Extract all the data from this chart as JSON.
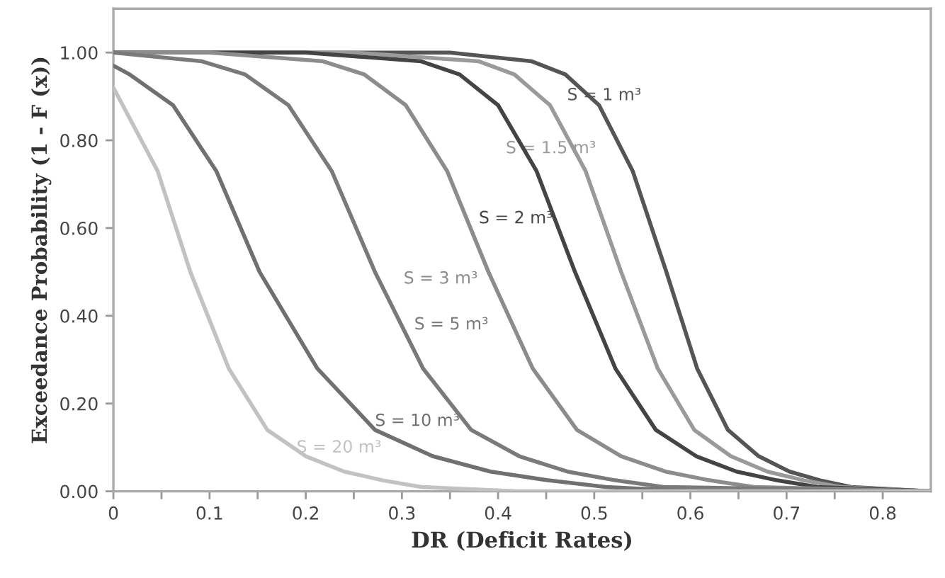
{
  "chart_data": {
    "type": "line",
    "xlabel": "DR (Deficit Rates)",
    "ylabel": "Exceedance Probability (1 - F (x))",
    "xlim": [
      0,
      0.85
    ],
    "ylim": [
      0,
      1.1
    ],
    "xticks": [
      0,
      {
        "value": 0.05,
        "label": null
      },
      0.1,
      {
        "value": 0.15,
        "label": null
      },
      0.2,
      {
        "value": 0.25,
        "label": null
      },
      0.3,
      {
        "value": 0.35,
        "label": null
      },
      0.4,
      {
        "value": 0.45,
        "label": null
      },
      0.5,
      {
        "value": 0.55,
        "label": null
      },
      0.6,
      {
        "value": 0.65,
        "label": null
      },
      0.7,
      {
        "value": 0.75,
        "label": null
      },
      0.8
    ],
    "yticks": [
      {
        "value": 0,
        "label": "0.00"
      },
      {
        "value": 0.2,
        "label": "0.20"
      },
      {
        "value": 0.4,
        "label": "0.40"
      },
      {
        "value": 0.6,
        "label": "0.60"
      },
      {
        "value": 0.8,
        "label": "0.80"
      },
      {
        "value": 1.0,
        "label": "1.00"
      }
    ],
    "grid": false,
    "legend": false,
    "marker": "none",
    "line_style": "solid",
    "series": [
      {
        "name": "S = 1 m³",
        "color": "#555555",
        "x": [
          0,
          0.35,
          0.435,
          0.47,
          0.505,
          0.54,
          0.575,
          0.607,
          0.639,
          0.671,
          0.703,
          0.735,
          0.767,
          0.85
        ],
        "values": [
          1.0,
          1.0,
          0.98,
          0.95,
          0.88,
          0.73,
          0.5,
          0.28,
          0.14,
          0.08,
          0.045,
          0.025,
          0.01,
          0.0
        ]
      },
      {
        "name": "S = 1.5 m³",
        "color": "#9a9a9a",
        "x": [
          0,
          0.25,
          0.38,
          0.417,
          0.454,
          0.491,
          0.528,
          0.566,
          0.604,
          0.642,
          0.68,
          0.718,
          0.756,
          0.85
        ],
        "values": [
          1.0,
          1.0,
          0.98,
          0.95,
          0.88,
          0.73,
          0.5,
          0.28,
          0.14,
          0.08,
          0.045,
          0.025,
          0.01,
          0.0
        ]
      },
      {
        "name": "S = 2 m³",
        "color": "#444444",
        "x": [
          0,
          0.2,
          0.32,
          0.36,
          0.4,
          0.44,
          0.48,
          0.522,
          0.564,
          0.606,
          0.648,
          0.69,
          0.732,
          0.85
        ],
        "values": [
          1.0,
          1.0,
          0.98,
          0.95,
          0.88,
          0.73,
          0.5,
          0.28,
          0.14,
          0.08,
          0.045,
          0.025,
          0.01,
          0.0
        ]
      },
      {
        "name": "S = 3 m³",
        "color": "#8c8c8c",
        "x": [
          0,
          0.1,
          0.218,
          0.261,
          0.304,
          0.347,
          0.39,
          0.436,
          0.482,
          0.528,
          0.574,
          0.62,
          0.666,
          0.85
        ],
        "values": [
          1.0,
          1.0,
          0.98,
          0.95,
          0.88,
          0.73,
          0.5,
          0.28,
          0.14,
          0.08,
          0.045,
          0.025,
          0.01,
          0.0
        ]
      },
      {
        "name": "S = 5 m³",
        "color": "#7a7a7a",
        "x": [
          0,
          0.092,
          0.137,
          0.182,
          0.227,
          0.272,
          0.322,
          0.372,
          0.422,
          0.472,
          0.522,
          0.572,
          0.85
        ],
        "values": [
          1.0,
          0.98,
          0.95,
          0.88,
          0.73,
          0.5,
          0.28,
          0.14,
          0.08,
          0.045,
          0.025,
          0.01,
          0.0
        ]
      },
      {
        "name": "S = 10 m³",
        "color": "#707070",
        "x": [
          0,
          0.017,
          0.062,
          0.107,
          0.152,
          0.212,
          0.272,
          0.332,
          0.392,
          0.452,
          0.512,
          0.6,
          0.85
        ],
        "values": [
          0.97,
          0.95,
          0.88,
          0.73,
          0.5,
          0.28,
          0.14,
          0.08,
          0.045,
          0.025,
          0.01,
          0.0,
          0.0
        ]
      },
      {
        "name": "S = 20 m³",
        "color": "#c2c2c2",
        "x": [
          0,
          0.046,
          0.08,
          0.12,
          0.16,
          0.2,
          0.24,
          0.28,
          0.32,
          0.42,
          0.85
        ],
        "values": [
          0.92,
          0.73,
          0.5,
          0.28,
          0.14,
          0.08,
          0.045,
          0.025,
          0.01,
          0.0,
          0.0
        ]
      }
    ]
  }
}
